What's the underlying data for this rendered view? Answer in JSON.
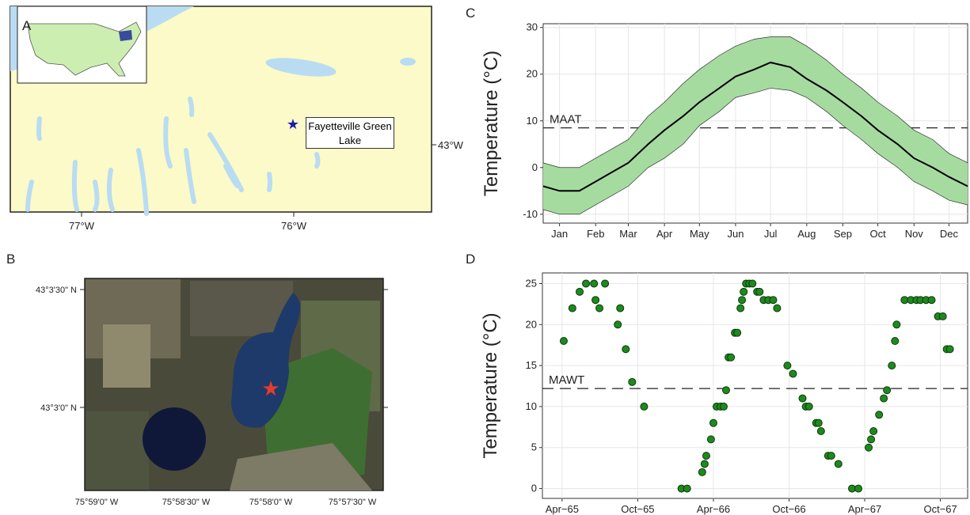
{
  "panel_a": {
    "letter": "A",
    "site_label": "Fayetteville Green Lake",
    "x_labels": [
      "77°W",
      "76°W"
    ],
    "y_label": "43°W"
  },
  "panel_b": {
    "letter": "B",
    "y_labels": [
      "43°3'30\" N",
      "43°3'0\" N"
    ],
    "x_labels": [
      "75°59'0\" W",
      "75°58'30\" W",
      "75°58'0\" W",
      "75°57'30\" W"
    ]
  },
  "chart_data": [
    {
      "type": "band-line",
      "letter": "C",
      "ylabel": "Temperature (°C)",
      "x": [
        1,
        15,
        32,
        46,
        60,
        74,
        91,
        105,
        121,
        135,
        152,
        166,
        182,
        196,
        213,
        227,
        244,
        258,
        274,
        288,
        305,
        319,
        335,
        349,
        365
      ],
      "values": [
        -4,
        -5,
        -5,
        -3,
        -1,
        1,
        5,
        8,
        11,
        14,
        17,
        19.5,
        21,
        22.5,
        21.5,
        19,
        16.5,
        14,
        11,
        8,
        5,
        2,
        0,
        -2,
        -4
      ],
      "lower": [
        -9,
        -10,
        -10,
        -8,
        -6,
        -4,
        0,
        2,
        5,
        9,
        12,
        15,
        16,
        17,
        16.5,
        15,
        12,
        9,
        6,
        3,
        0,
        -3,
        -5,
        -7,
        -8
      ],
      "upper": [
        1,
        0,
        0,
        2,
        4,
        6,
        11,
        14,
        18,
        21,
        24,
        26,
        27.5,
        28,
        28,
        26,
        23,
        20,
        17,
        14,
        11,
        8,
        6,
        3,
        1
      ],
      "color": "#000000",
      "band_color": "#a6dba0",
      "hline": {
        "value": 8.5,
        "label": "MAAT"
      },
      "xlim": [
        1,
        365
      ],
      "xticks": [
        {
          "value": 15,
          "label": "Jan"
        },
        {
          "value": 46,
          "label": "Feb"
        },
        {
          "value": 74,
          "label": "Mar"
        },
        {
          "value": 105,
          "label": "Apr"
        },
        {
          "value": 135,
          "label": "May"
        },
        {
          "value": 166,
          "label": "Jun"
        },
        {
          "value": 196,
          "label": "Jul"
        },
        {
          "value": 227,
          "label": "Aug"
        },
        {
          "value": 258,
          "label": "Sep"
        },
        {
          "value": 288,
          "label": "Oct"
        },
        {
          "value": 319,
          "label": "Nov"
        },
        {
          "value": 349,
          "label": "Dec"
        }
      ],
      "ylim": [
        -11.9,
        30.8
      ],
      "yticks": [
        -10,
        0,
        10,
        20,
        30
      ],
      "grid": true
    },
    {
      "type": "scatter",
      "letter": "D",
      "ylabel": "Temperature (°C)",
      "color": "#1e8a1e",
      "x": [
        1965.261,
        1965.318,
        1965.366,
        1965.408,
        1965.461,
        1965.534,
        1965.471,
        1965.497,
        1965.618,
        1965.634,
        1965.671,
        1965.713,
        1965.792,
        1966.039,
        1966.076,
        1966.176,
        1966.192,
        1966.203,
        1966.234,
        1966.25,
        1966.271,
        1966.297,
        1966.318,
        1966.334,
        1966.35,
        1966.366,
        1966.392,
        1966.408,
        1966.429,
        1966.439,
        1966.45,
        1966.466,
        1966.487,
        1966.508,
        1966.539,
        1966.555,
        1966.582,
        1966.613,
        1966.645,
        1966.671,
        1966.739,
        1966.776,
        1966.839,
        1966.861,
        1966.882,
        1966.929,
        1966.945,
        1966.961,
        1967.008,
        1967.029,
        1967.076,
        1967.166,
        1967.208,
        1967.276,
        1967.292,
        1967.308,
        1967.345,
        1967.376,
        1967.397,
        1967.429,
        1967.45,
        1967.461,
        1967.513,
        1967.555,
        1967.592,
        1967.618,
        1967.655,
        1967.692,
        1967.734,
        1967.766,
        1967.792,
        1967.813
      ],
      "values": [
        18,
        22,
        24,
        25,
        25,
        25,
        23,
        22,
        20,
        22,
        17,
        13,
        10,
        0,
        0,
        2,
        3,
        4,
        6,
        8,
        10,
        10,
        10,
        12,
        16,
        16,
        19,
        19,
        22,
        23,
        24,
        25,
        25,
        25,
        24,
        24,
        23,
        23,
        23,
        22,
        15,
        14,
        11,
        10,
        10,
        8,
        8,
        7,
        4,
        4,
        3,
        0,
        0,
        5,
        6,
        7,
        9,
        11,
        12,
        15,
        18,
        20,
        23,
        23,
        23,
        23,
        23,
        23,
        21,
        21,
        17,
        17
      ],
      "hline": {
        "value": 12.2,
        "label": "MAWT"
      },
      "xlim": [
        1965.12,
        1967.93
      ],
      "xticks": [
        {
          "value": 1965.25,
          "label": "Apr−65"
        },
        {
          "value": 1965.75,
          "label": "Oct−65"
        },
        {
          "value": 1966.25,
          "label": "Apr−66"
        },
        {
          "value": 1966.75,
          "label": "Oct−66"
        },
        {
          "value": 1967.25,
          "label": "Apr−67"
        },
        {
          "value": 1967.75,
          "label": "Oct−67"
        }
      ],
      "ylim": [
        -1.2,
        26.3
      ],
      "yticks": [
        0,
        5,
        10,
        15,
        20,
        25
      ],
      "grid": true
    }
  ]
}
